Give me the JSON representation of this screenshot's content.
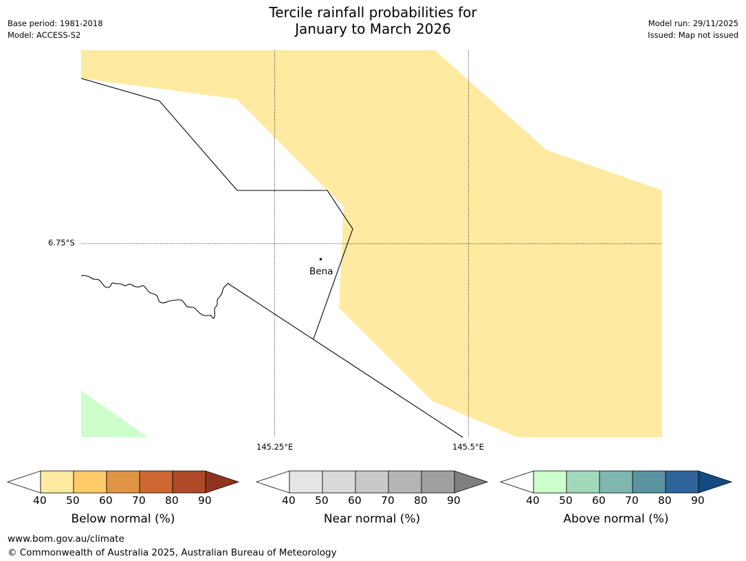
{
  "title": {
    "line1": "Tercile rainfall probabilities for",
    "line2": "January to March 2026"
  },
  "meta_left": {
    "base_period": "Base period: 1981-2018",
    "model": "Model: ACCESS-S2"
  },
  "meta_right": {
    "model_run": "Model run: 29/11/2025",
    "issued": "Issued: Map not issued"
  },
  "map": {
    "lat_label": "6.75°S",
    "lon_labels": [
      "145.25°E",
      "145.5°E"
    ],
    "place_label": "Bena",
    "fill_colors": {
      "below_40_50": "#feeaa1",
      "above_40_50": "#ccffcc"
    }
  },
  "colorbars": [
    {
      "title": "Below normal (%)",
      "ticks": [
        "40",
        "50",
        "60",
        "70",
        "80",
        "90"
      ],
      "colors": [
        "#ffffff",
        "#feeaa1",
        "#fecb68",
        "#e09444",
        "#cd6734",
        "#ae4a27",
        "#8f3421"
      ]
    },
    {
      "title": "Near normal (%)",
      "ticks": [
        "40",
        "50",
        "60",
        "70",
        "80",
        "90"
      ],
      "colors": [
        "#ffffff",
        "#e6e6e6",
        "#d9d9d9",
        "#c9c9c9",
        "#b5b5b5",
        "#a0a0a0",
        "#808080"
      ]
    },
    {
      "title": "Above normal (%)",
      "ticks": [
        "40",
        "50",
        "60",
        "70",
        "80",
        "90"
      ],
      "colors": [
        "#ffffff",
        "#ccffcc",
        "#a3d9bb",
        "#80b8b0",
        "#5b93a1",
        "#2e6499",
        "#154a82"
      ]
    }
  ],
  "footer": {
    "url": "www.bom.gov.au/climate",
    "copyright": "© Commonwealth of Australia 2025, Australian Bureau of Meteorology"
  }
}
